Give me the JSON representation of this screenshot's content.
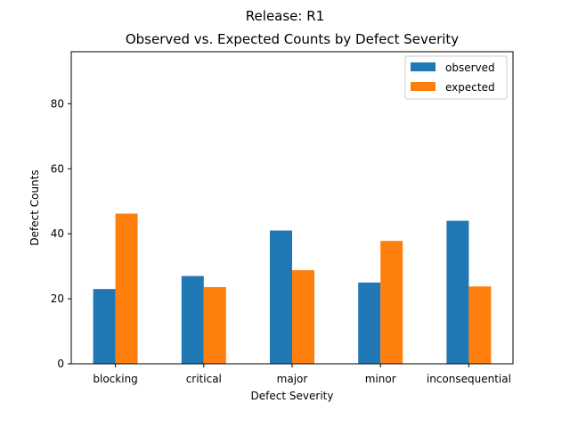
{
  "chart_data": {
    "type": "bar",
    "suptitle": "Release: R1",
    "title": "Observed vs. Expected Counts by Defect Severity",
    "xlabel": "Defect Severity",
    "ylabel": "Defect Counts",
    "categories": [
      "blocking",
      "critical",
      "major",
      "minor",
      "inconsequential"
    ],
    "series": [
      {
        "name": "observed",
        "color": "#1f77b4",
        "values": [
          23,
          27,
          41,
          25,
          44
        ]
      },
      {
        "name": "expected",
        "color": "#ff7f0e",
        "values": [
          46.2,
          23.6,
          28.8,
          37.8,
          23.8
        ]
      }
    ],
    "ylim": [
      0,
      96
    ],
    "yticks": [
      0,
      20,
      40,
      60,
      80
    ],
    "grid": false,
    "legend_position": "top-right"
  }
}
